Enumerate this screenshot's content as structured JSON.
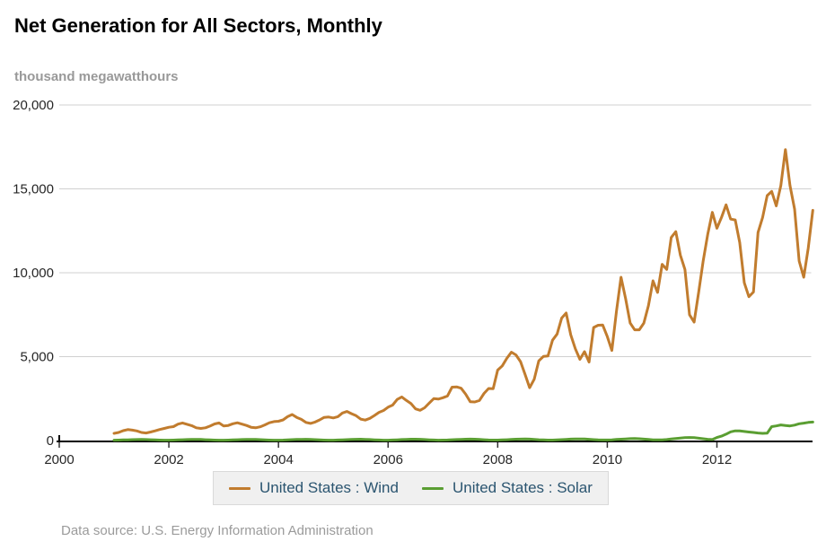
{
  "header": {
    "title": "Net Generation for All Sectors, Monthly",
    "units_label": "thousand megawatthours"
  },
  "footer": {
    "text": "Data source: U.S. Energy Information Administration"
  },
  "legend": {
    "items": [
      {
        "label": "United States : Wind"
      },
      {
        "label": "United States : Solar"
      }
    ]
  },
  "colors": {
    "wind": "#c17c2e",
    "solar": "#5a9e32",
    "axis": "#000000",
    "gridline": "#d0d0d0",
    "tick_label": "#262626",
    "legend_text": "#2b5570",
    "muted_text": "#999999"
  },
  "chart_data": {
    "type": "line",
    "title": "Net Generation for All Sectors, Monthly",
    "xlabel": "",
    "ylabel": "thousand megawatthours",
    "x_start_year": 2001.0,
    "x_step_years": 0.0833333,
    "xlim": [
      2000,
      2013.72
    ],
    "ylim": [
      0,
      20000
    ],
    "xticks": [
      2000,
      2002,
      2004,
      2006,
      2008,
      2010,
      2012
    ],
    "yticks": [
      0,
      5000,
      10000,
      15000,
      20000
    ],
    "ytick_labels": [
      "0",
      "5,000",
      "10,000",
      "15,000",
      "20,000"
    ],
    "grid": "horizontal",
    "legend_position": "bottom",
    "series": [
      {
        "name": "United States : Wind",
        "color": "#c17c2e",
        "values": [
          430,
          480,
          590,
          650,
          620,
          570,
          480,
          450,
          510,
          580,
          660,
          720,
          790,
          830,
          980,
          1050,
          970,
          890,
          760,
          720,
          760,
          860,
          990,
          1050,
          870,
          900,
          1000,
          1060,
          980,
          900,
          790,
          760,
          820,
          930,
          1060,
          1130,
          1150,
          1230,
          1420,
          1550,
          1380,
          1260,
          1080,
          1020,
          1100,
          1230,
          1380,
          1400,
          1350,
          1420,
          1640,
          1730,
          1600,
          1480,
          1280,
          1220,
          1320,
          1490,
          1680,
          1790,
          1990,
          2110,
          2450,
          2600,
          2390,
          2210,
          1890,
          1800,
          1950,
          2230,
          2500,
          2470,
          2550,
          2660,
          3180,
          3200,
          3120,
          2760,
          2310,
          2300,
          2390,
          2810,
          3100,
          3090,
          4200,
          4450,
          4900,
          5270,
          5100,
          4700,
          3930,
          3150,
          3650,
          4750,
          5010,
          5040,
          5980,
          6350,
          7300,
          7600,
          6300,
          5470,
          4840,
          5300,
          4680,
          6740,
          6870,
          6880,
          6200,
          5370,
          7700,
          9730,
          8460,
          7000,
          6600,
          6600,
          7000,
          8030,
          9520,
          8830,
          10500,
          10200,
          12100,
          12450,
          11050,
          10190,
          7500,
          7060,
          8850,
          10700,
          12300,
          13600,
          12650,
          13300,
          14050,
          13200,
          13150,
          11800,
          9400,
          8570,
          8850,
          12400,
          13300,
          14600,
          14850,
          13990,
          15200,
          17340,
          15200,
          13800,
          10700,
          9730,
          11460,
          13720
        ]
      },
      {
        "name": "United States : Solar",
        "color": "#5a9e32",
        "values": [
          20,
          25,
          35,
          45,
          55,
          60,
          65,
          60,
          50,
          35,
          25,
          20,
          20,
          25,
          40,
          50,
          60,
          65,
          70,
          65,
          50,
          35,
          25,
          20,
          20,
          25,
          40,
          50,
          60,
          70,
          70,
          65,
          55,
          40,
          25,
          20,
          20,
          28,
          42,
          55,
          65,
          72,
          75,
          70,
          55,
          40,
          28,
          22,
          22,
          30,
          45,
          55,
          65,
          75,
          78,
          72,
          58,
          42,
          30,
          22,
          22,
          30,
          45,
          58,
          68,
          78,
          80,
          75,
          60,
          45,
          30,
          22,
          25,
          32,
          48,
          60,
          72,
          82,
          85,
          80,
          65,
          48,
          32,
          25,
          25,
          35,
          50,
          65,
          78,
          88,
          90,
          85,
          68,
          50,
          35,
          28,
          28,
          38,
          55,
          70,
          85,
          95,
          98,
          92,
          75,
          55,
          38,
          30,
          30,
          42,
          62,
          80,
          98,
          110,
          115,
          108,
          88,
          65,
          45,
          35,
          45,
          60,
          90,
          120,
          150,
          170,
          180,
          170,
          140,
          105,
          75,
          60,
          180,
          260,
          380,
          520,
          580,
          570,
          540,
          510,
          480,
          450,
          430,
          440,
          830,
          870,
          930,
          900,
          870,
          920,
          1000,
          1040,
          1080,
          1100
        ]
      }
    ]
  }
}
